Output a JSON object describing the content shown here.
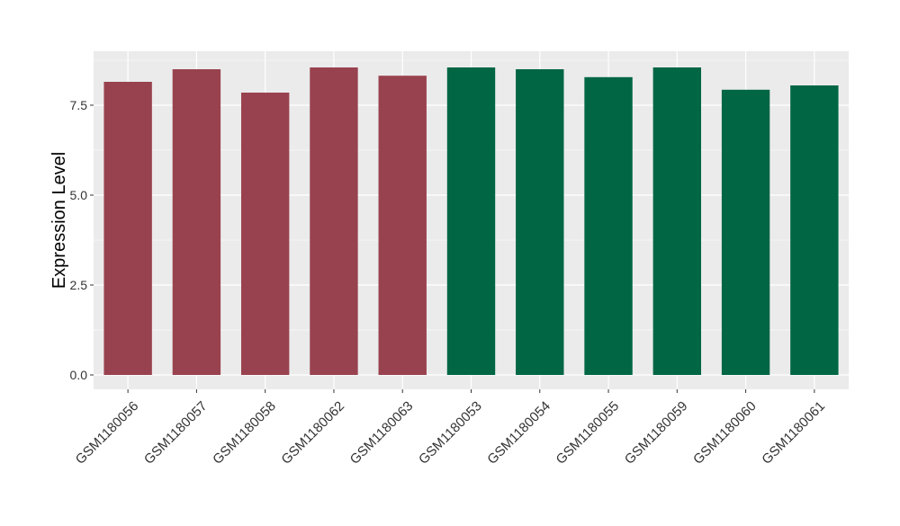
{
  "chart_data": {
    "type": "bar",
    "title": "",
    "xlabel": "",
    "ylabel": "Expression Level",
    "ylim": [
      -0.4,
      9.0
    ],
    "yticks": [
      0.0,
      2.5,
      5.0,
      7.5
    ],
    "ytick_labels": [
      "0.0",
      "2.5",
      "5.0",
      "7.5"
    ],
    "grid": true,
    "legend": "none",
    "categories": [
      "GSM1180056",
      "GSM1180057",
      "GSM1180058",
      "GSM1180062",
      "GSM1180063",
      "GSM1180053",
      "GSM1180054",
      "GSM1180055",
      "GSM1180059",
      "GSM1180060",
      "GSM1180061"
    ],
    "values": [
      8.15,
      8.5,
      7.85,
      8.55,
      8.32,
      8.55,
      8.5,
      8.28,
      8.55,
      7.93,
      8.05
    ],
    "bar_colors": [
      "#99424f",
      "#99424f",
      "#99424f",
      "#99424f",
      "#99424f",
      "#006644",
      "#006644",
      "#006644",
      "#006644",
      "#006644",
      "#006644"
    ],
    "panel_background": "#ebebeb",
    "grid_color": "#ffffff"
  }
}
